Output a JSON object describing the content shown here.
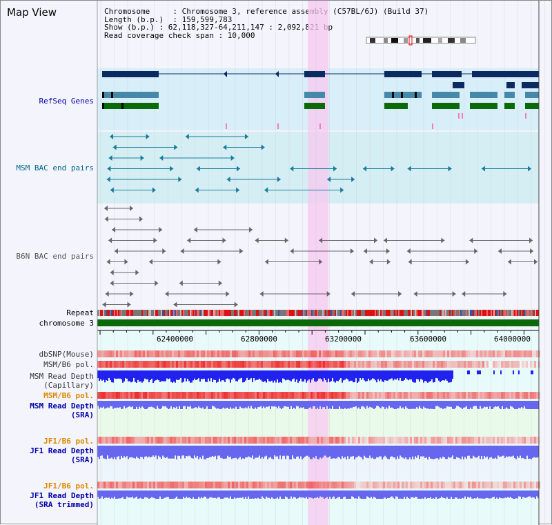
{
  "window": {
    "title": "Map View"
  },
  "info": {
    "chromosome": "Chromosome     : Chromosome 3, reference assembly (C57BL/6J) (Build 37)",
    "length": "Length (b.p.)  : 159,599,783",
    "show": "Show (b.p.) : 62,118,327-64,211,147 : 2,092,821 bp",
    "coverage": "Read coverage check span : 10,000"
  },
  "tracks": {
    "refseq": "RefSeq Genes",
    "msm_bac": "MSM BAC end pairs",
    "b6n_bac": "B6N BAC end pairs",
    "repeat": "Repeat",
    "chromosome": "chromosome 3",
    "dbsnp": "dbSNP(Mouse)",
    "msm_b6_pol": "MSM/B6 pol.",
    "msm_depth_cap": "MSM Read Depth\n(Capillary)",
    "msm_b6_pol2": "MSM/B6 pol.",
    "msm_depth_sra": "MSM Read Depth\n(SRA)",
    "jf1_b6_pol": "JF1/B6 pol.",
    "jf1_depth_sra": "JF1 Read Depth\n(SRA)",
    "jf1_b6_pol2": "JF1/B6 pol.",
    "jf1_depth_trim": "JF1 Read Depth\n(SRA trimmed)"
  },
  "axis": {
    "ticks": [
      "62400000",
      "62800000",
      "63200000",
      "63600000",
      "64000000"
    ]
  },
  "colors": {
    "highlight": "#f8c8f0",
    "refseq_bg": "#d8eef8",
    "msm_bg": "#d4eef4",
    "gene_navy": "#0a2a60",
    "gene_teal": "#4488aa",
    "gene_green": "#0a6a0a",
    "msm_teal": "#1a7a9a",
    "b6n_gray": "#666666",
    "chrom_green": "#0a6a0a",
    "depth_blue": "#2222ee",
    "depth_mid": "#6666ee"
  }
}
